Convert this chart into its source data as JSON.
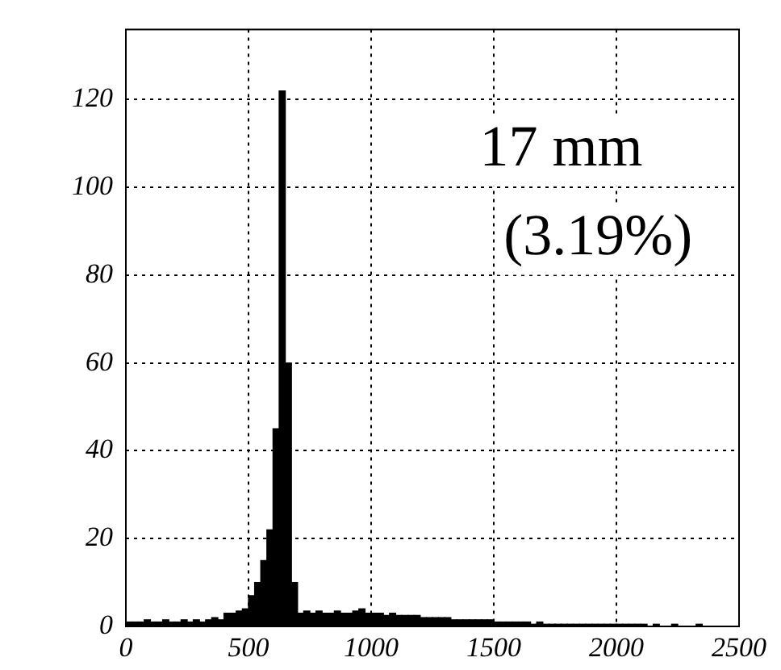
{
  "chart_data": {
    "type": "histogram",
    "bins": [
      0,
      25,
      50,
      75,
      100,
      125,
      150,
      175,
      200,
      225,
      250,
      275,
      300,
      325,
      350,
      375,
      400,
      425,
      450,
      475,
      500,
      525,
      550,
      575,
      600,
      625,
      650,
      675,
      700,
      725,
      750,
      775,
      800,
      825,
      850,
      875,
      900,
      925,
      950,
      975,
      1000,
      1025,
      1050,
      1075,
      1100,
      1125,
      1150,
      1175,
      1200,
      1225,
      1250,
      1275,
      1300,
      1325,
      1350,
      1375,
      1400,
      1425,
      1450,
      1475,
      1500,
      1525,
      1550,
      1575,
      1600,
      1625,
      1650,
      1675,
      1700,
      1725,
      1750,
      1775,
      1800,
      1825,
      1850,
      1875,
      1900,
      1925,
      1950,
      1975,
      2000,
      2025,
      2050,
      2075,
      2100,
      2125,
      2150,
      2175,
      2200,
      2225,
      2250,
      2275,
      2300,
      2325,
      2350,
      2375,
      2400,
      2425,
      2450,
      2475,
      2500
    ],
    "values": [
      1,
      1,
      1,
      1.5,
      1,
      1,
      1.5,
      1,
      1,
      1.5,
      1,
      1.5,
      1,
      1.5,
      2,
      1.5,
      3,
      3,
      3.5,
      4,
      7,
      10,
      15,
      22,
      45,
      122,
      60,
      10,
      3,
      3.5,
      3,
      3.5,
      3,
      3,
      3.5,
      3,
      3,
      3.5,
      4,
      3,
      3,
      3,
      2.5,
      3,
      2.5,
      2.5,
      2.5,
      2.5,
      2,
      2,
      2,
      2,
      2,
      1.5,
      1.5,
      1.5,
      1.5,
      1.5,
      1.5,
      1.5,
      1,
      1,
      1,
      1,
      1,
      1,
      0.5,
      1,
      0.5,
      0.5,
      0.5,
      0.5,
      0.5,
      0.5,
      0.5,
      0.5,
      0.5,
      0.5,
      0.5,
      0.5,
      0.5,
      0.5,
      0.5,
      0.5,
      0.5,
      0,
      0.5,
      0,
      0,
      0.5,
      0,
      0,
      0,
      0.5,
      0,
      0,
      0,
      0,
      0,
      0
    ],
    "color": "#000000",
    "xlim": [
      0,
      2500
    ],
    "xticks": [
      0,
      500,
      1000,
      1500,
      2000,
      2500
    ],
    "ylim": [
      0,
      136
    ],
    "yticks": [
      0,
      20,
      40,
      60,
      80,
      100,
      120
    ],
    "grid": true,
    "annotations": [
      "17 mm",
      "(3.19%)"
    ]
  }
}
